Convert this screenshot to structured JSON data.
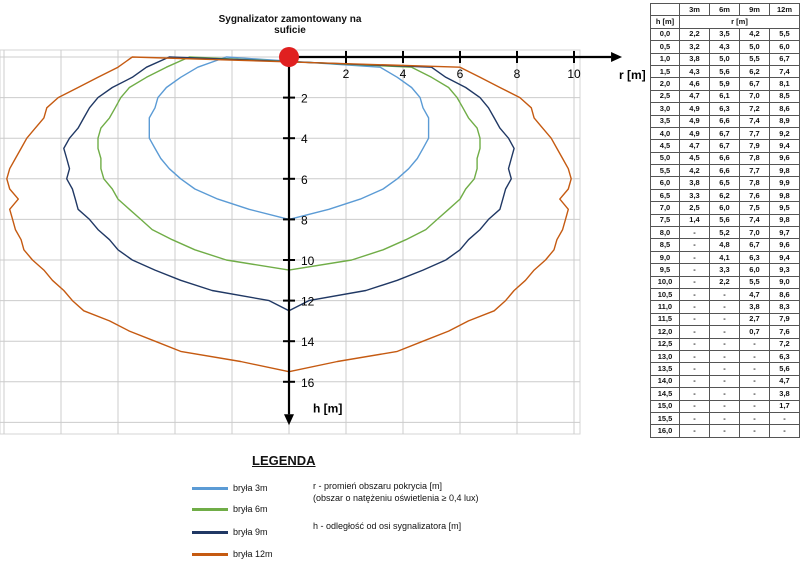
{
  "title": "Sygnalizator zamontowany na suficie",
  "chart_data": {
    "type": "line",
    "xlabel": "r [m]",
    "ylabel": "h [m]",
    "xlim": [
      -10,
      10
    ],
    "ylim": [
      0,
      18
    ],
    "x_ticks": [
      "2",
      "4",
      "6",
      "8",
      "10"
    ],
    "y_ticks": [
      "2",
      "4",
      "6",
      "8",
      "10",
      "12",
      "14",
      "16"
    ],
    "grid": true,
    "h": [
      0.0,
      0.5,
      1.0,
      1.5,
      2.0,
      2.5,
      3.0,
      3.5,
      4.0,
      4.5,
      5.0,
      5.5,
      6.0,
      6.5,
      7.0,
      7.5,
      8.0,
      8.5,
      9.0,
      9.5,
      10.0,
      10.5,
      11.0,
      11.5,
      12.0,
      12.5,
      13.0,
      13.5,
      14.0,
      14.5,
      15.0,
      15.5,
      16.0
    ],
    "series": [
      {
        "name": "bryła 3m",
        "color": "#5b9bd5",
        "r": [
          2.2,
          3.2,
          3.8,
          4.3,
          4.6,
          4.7,
          4.9,
          4.9,
          4.9,
          4.7,
          4.5,
          4.2,
          3.8,
          3.3,
          2.5,
          1.4,
          0
        ]
      },
      {
        "name": "bryła 6m",
        "color": "#70ad47",
        "r": [
          3.5,
          4.3,
          5.0,
          5.6,
          5.9,
          6.1,
          6.3,
          6.6,
          6.7,
          6.7,
          6.6,
          6.6,
          6.5,
          6.2,
          6.0,
          5.6,
          5.2,
          4.8,
          4.1,
          3.3,
          2.2,
          0
        ]
      },
      {
        "name": "bryła 9m",
        "color": "#203864",
        "r": [
          4.2,
          5.0,
          5.5,
          6.2,
          6.7,
          7.0,
          7.2,
          7.4,
          7.7,
          7.9,
          7.8,
          7.7,
          7.8,
          7.6,
          7.5,
          7.4,
          7.0,
          6.7,
          6.3,
          6.0,
          5.5,
          4.7,
          3.8,
          2.7,
          0.7,
          0
        ]
      },
      {
        "name": "bryła 12m",
        "color": "#c55a11",
        "r": [
          5.5,
          6.0,
          6.7,
          7.4,
          8.1,
          8.5,
          8.6,
          8.9,
          9.2,
          9.4,
          9.6,
          9.8,
          9.9,
          9.8,
          9.5,
          9.8,
          9.7,
          9.6,
          9.4,
          9.3,
          9.0,
          8.6,
          8.3,
          7.9,
          7.6,
          7.2,
          6.3,
          5.6,
          4.7,
          3.8,
          1.7,
          0
        ]
      }
    ]
  },
  "table": {
    "headers": [
      "",
      "3m",
      "6m",
      "9m",
      "12m"
    ],
    "subheader": [
      "h [m]",
      "r [m]"
    ],
    "rows": [
      [
        "0,0",
        "2,2",
        "3,5",
        "4,2",
        "5,5"
      ],
      [
        "0,5",
        "3,2",
        "4,3",
        "5,0",
        "6,0"
      ],
      [
        "1,0",
        "3,8",
        "5,0",
        "5,5",
        "6,7"
      ],
      [
        "1,5",
        "4,3",
        "5,6",
        "6,2",
        "7,4"
      ],
      [
        "2,0",
        "4,6",
        "5,9",
        "6,7",
        "8,1"
      ],
      [
        "2,5",
        "4,7",
        "6,1",
        "7,0",
        "8,5"
      ],
      [
        "3,0",
        "4,9",
        "6,3",
        "7,2",
        "8,6"
      ],
      [
        "3,5",
        "4,9",
        "6,6",
        "7,4",
        "8,9"
      ],
      [
        "4,0",
        "4,9",
        "6,7",
        "7,7",
        "9,2"
      ],
      [
        "4,5",
        "4,7",
        "6,7",
        "7,9",
        "9,4"
      ],
      [
        "5,0",
        "4,5",
        "6,6",
        "7,8",
        "9,6"
      ],
      [
        "5,5",
        "4,2",
        "6,6",
        "7,7",
        "9,8"
      ],
      [
        "6,0",
        "3,8",
        "6,5",
        "7,8",
        "9,9"
      ],
      [
        "6,5",
        "3,3",
        "6,2",
        "7,6",
        "9,8"
      ],
      [
        "7,0",
        "2,5",
        "6,0",
        "7,5",
        "9,5"
      ],
      [
        "7,5",
        "1,4",
        "5,6",
        "7,4",
        "9,8"
      ],
      [
        "8,0",
        "-",
        "5,2",
        "7,0",
        "9,7"
      ],
      [
        "8,5",
        "-",
        "4,8",
        "6,7",
        "9,6"
      ],
      [
        "9,0",
        "-",
        "4,1",
        "6,3",
        "9,4"
      ],
      [
        "9,5",
        "-",
        "3,3",
        "6,0",
        "9,3"
      ],
      [
        "10,0",
        "-",
        "2,2",
        "5,5",
        "9,0"
      ],
      [
        "10,5",
        "-",
        "-",
        "4,7",
        "8,6"
      ],
      [
        "11,0",
        "-",
        "-",
        "3,8",
        "8,3"
      ],
      [
        "11,5",
        "-",
        "-",
        "2,7",
        "7,9"
      ],
      [
        "12,0",
        "-",
        "-",
        "0,7",
        "7,6"
      ],
      [
        "12,5",
        "-",
        "-",
        "-",
        "7,2"
      ],
      [
        "13,0",
        "-",
        "-",
        "-",
        "6,3"
      ],
      [
        "13,5",
        "-",
        "-",
        "-",
        "5,6"
      ],
      [
        "14,0",
        "-",
        "-",
        "-",
        "4,7"
      ],
      [
        "14,5",
        "-",
        "-",
        "-",
        "3,8"
      ],
      [
        "15,0",
        "-",
        "-",
        "-",
        "1,7"
      ],
      [
        "15,5",
        "-",
        "-",
        "-",
        "-"
      ],
      [
        "16,0",
        "-",
        "-",
        "-",
        "-"
      ]
    ]
  },
  "legend": {
    "title": "LEGENDA",
    "items": [
      {
        "label": "bryła 3m",
        "color": "#5b9bd5"
      },
      {
        "label": "bryła 6m",
        "color": "#70ad47"
      },
      {
        "label": "bryła 9m",
        "color": "#203864"
      },
      {
        "label": "bryła 12m",
        "color": "#c55a11"
      }
    ],
    "note_r_line1": "r - promień obszaru pokrycia [m]",
    "note_r_line2": "(obszar o natężeniu oświetlenia ≥ 0,4 lux)",
    "note_h": "h - odległość od osi sygnalizatora [m]"
  },
  "colors": {
    "axis": "#000000",
    "marker": "#e02020",
    "grid": "#cccccc"
  }
}
